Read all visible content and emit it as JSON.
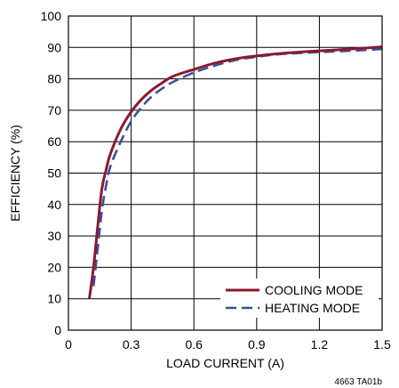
{
  "chart_data": {
    "type": "line",
    "xlabel": "LOAD CURRENT (A)",
    "ylabel": "EFFICIENCY (%)",
    "xlim": [
      0,
      1.5
    ],
    "ylim": [
      0,
      100
    ],
    "x_ticks": [
      "0",
      "0.3",
      "0.6",
      "0.9",
      "1.2",
      "1.5"
    ],
    "y_ticks": [
      "0",
      "10",
      "20",
      "30",
      "40",
      "50",
      "60",
      "70",
      "80",
      "90",
      "100"
    ],
    "grid": true,
    "legend_position": "bottom-right",
    "series": [
      {
        "name": "COOLING MODE",
        "color": "#8b1a2e",
        "dash": "solid",
        "x": [
          0.1,
          0.12,
          0.14,
          0.16,
          0.18,
          0.2,
          0.25,
          0.3,
          0.35,
          0.4,
          0.45,
          0.5,
          0.6,
          0.7,
          0.8,
          0.9,
          1.0,
          1.1,
          1.2,
          1.3,
          1.4,
          1.5
        ],
        "y": [
          10,
          20,
          33,
          45,
          51,
          56,
          64,
          69.5,
          73.5,
          76.5,
          78.8,
          80.8,
          83,
          85,
          86.4,
          87.3,
          88,
          88.5,
          88.9,
          89.3,
          89.7,
          90.2
        ]
      },
      {
        "name": "HEATING MODE",
        "color": "#3a4f9f",
        "dash": "dashed",
        "x": [
          0.12,
          0.14,
          0.16,
          0.18,
          0.2,
          0.25,
          0.3,
          0.35,
          0.4,
          0.45,
          0.5,
          0.6,
          0.7,
          0.8,
          0.9,
          1.0,
          1.1,
          1.2,
          1.3,
          1.4,
          1.5
        ],
        "y": [
          14,
          26,
          38,
          46,
          52,
          60,
          66.5,
          71,
          74.5,
          77,
          79,
          82,
          84.2,
          86,
          87,
          87.8,
          88.2,
          88.5,
          88.8,
          89.1,
          89.5
        ]
      }
    ]
  },
  "footnote": "4663 TA01b"
}
